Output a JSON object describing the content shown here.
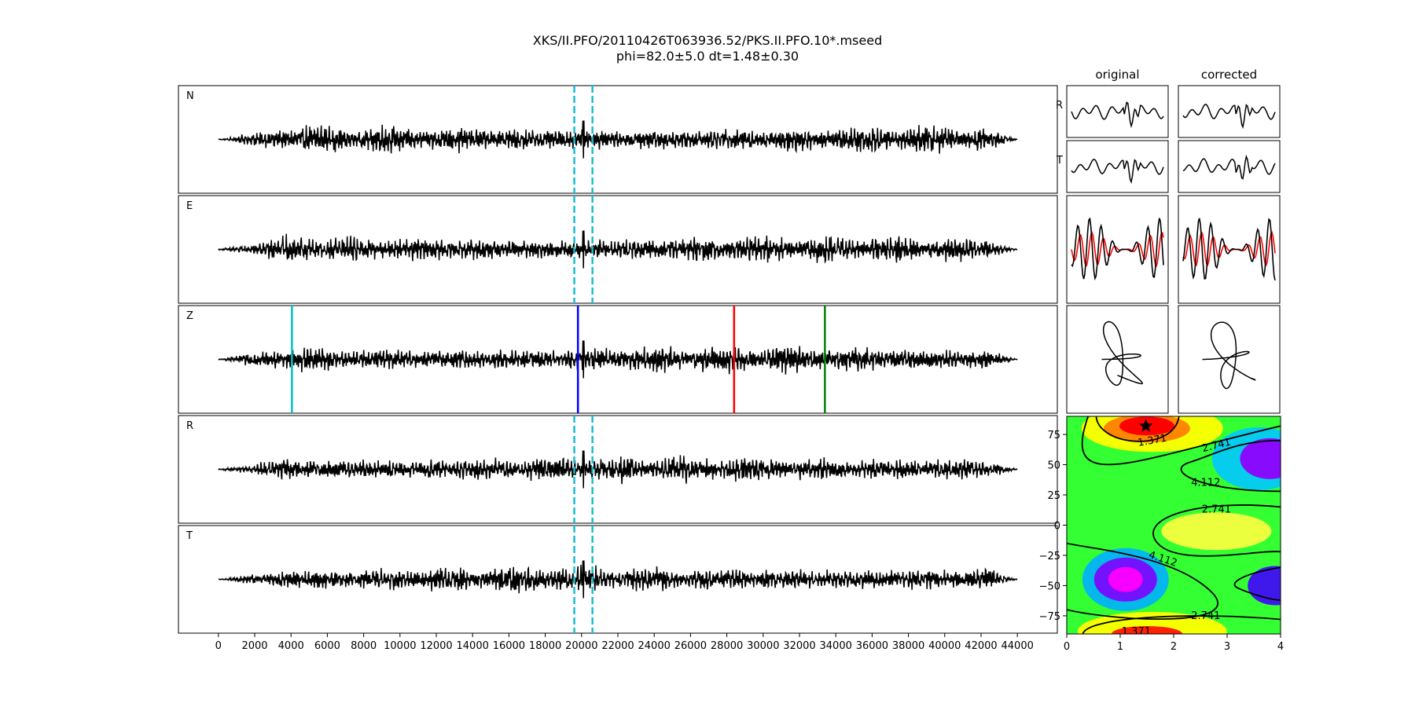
{
  "title": {
    "line1": "XKS/II.PFO/20110426T063936.52/PKS.II.PFO.10*.mseed",
    "line2": "phi=82.0±5.0 dt=1.48±0.30"
  },
  "chart_data": [
    {
      "type": "line",
      "name": "traces",
      "panels": [
        "N",
        "E",
        "Z",
        "R",
        "T"
      ],
      "xlim": [
        -2200,
        46200
      ],
      "ylim": [
        -1,
        1
      ],
      "signal_range": [
        0,
        44000
      ],
      "xticks": [
        0,
        2000,
        4000,
        6000,
        8000,
        10000,
        12000,
        14000,
        16000,
        18000,
        20000,
        22000,
        24000,
        26000,
        28000,
        30000,
        32000,
        34000,
        36000,
        38000,
        40000,
        42000,
        44000
      ],
      "window_lines": {
        "panels": [
          "N",
          "E",
          "R",
          "T"
        ],
        "x": [
          19600,
          20600
        ],
        "color": "#17becf",
        "style": "dashed"
      },
      "phase_markers": [
        {
          "x": 4050,
          "color": "#00bfbf"
        },
        {
          "x": 19800,
          "color": "#0000ff"
        },
        {
          "x": 28400,
          "color": "#ff0000"
        },
        {
          "x": 33400,
          "color": "#008000"
        }
      ],
      "spike_x": 20100
    },
    {
      "type": "line",
      "name": "particle-windows",
      "column_titles": [
        "original",
        "corrected"
      ],
      "row_labels": [
        "R",
        "T"
      ],
      "overlay_colors": [
        "#000000",
        "#ff0000"
      ]
    },
    {
      "type": "heatmap",
      "name": "error-surface",
      "xlim": [
        0,
        4
      ],
      "ylim": [
        -90,
        90
      ],
      "xticks": [
        0,
        1,
        2,
        3,
        4
      ],
      "yticks": [
        75,
        50,
        25,
        0,
        -25,
        -50,
        -75
      ],
      "contour_labels": [
        "1.371",
        "2.741",
        "2.741",
        "4.112",
        "4.112",
        "2.741",
        "1.371"
      ],
      "best": {
        "x": 1.48,
        "y": 82.0
      }
    }
  ]
}
